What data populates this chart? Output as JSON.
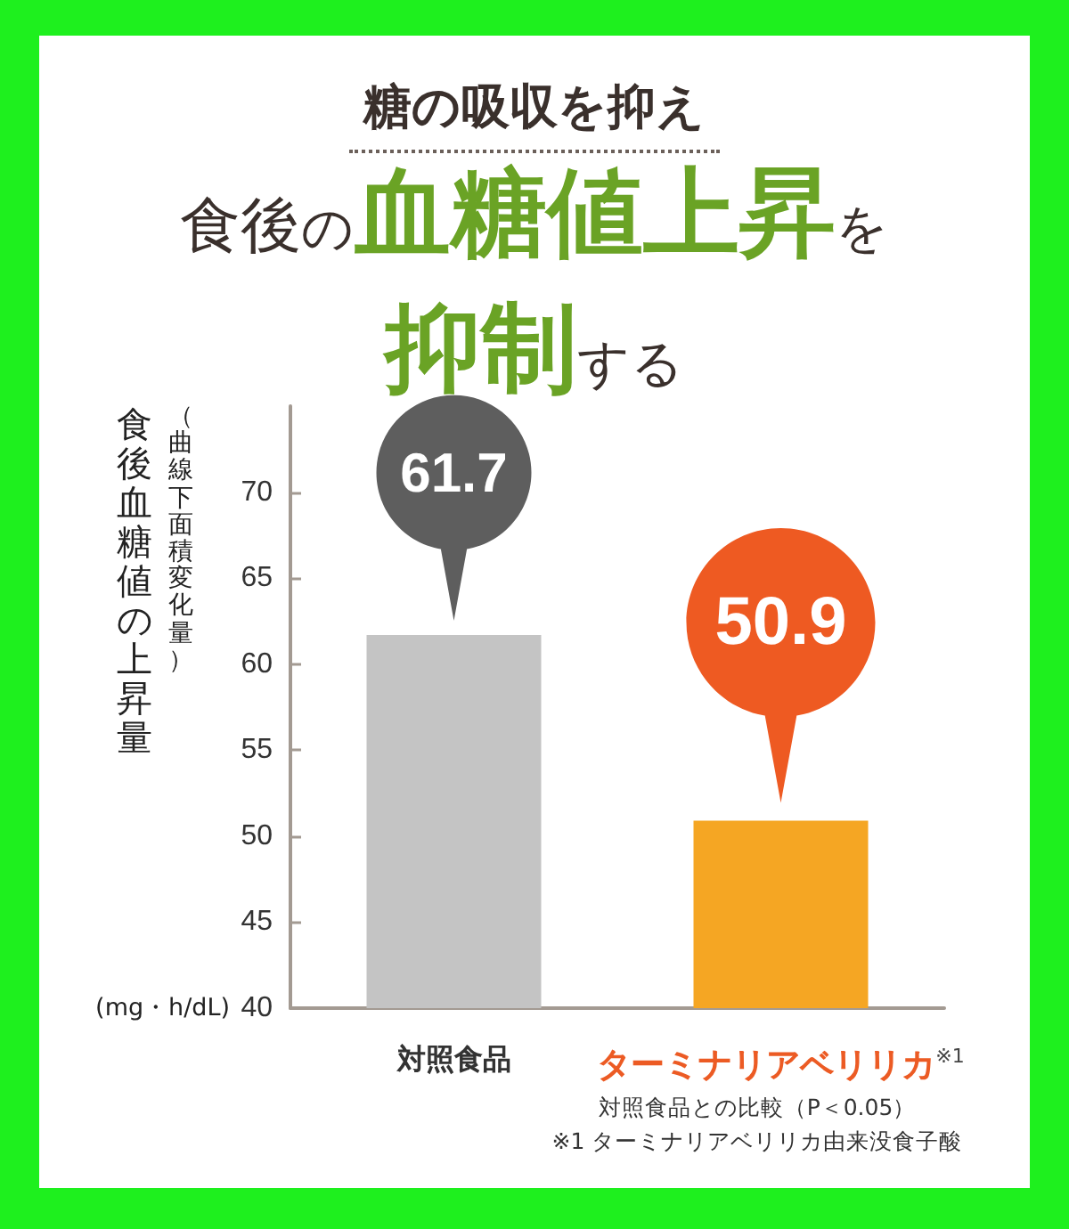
{
  "chart_data": {
    "type": "bar",
    "title": "糖の吸収を抑え",
    "subtitle": "食後の血糖値上昇を抑制する",
    "ylabel": "食後血糖値の上昇量（曲線下面積変化量）(mg・h/dL)",
    "categories": [
      "対照食品",
      "ターミナリアベリリカ$^{※1}$"
    ],
    "values": [
      61.7,
      50.9
    ],
    "colors": [
      "#c4c4c4",
      "#f5a623"
    ],
    "ylim": [
      40,
      75
    ],
    "yticks": [
      40,
      45,
      50,
      55,
      60,
      65,
      70
    ],
    "data_labels": true,
    "annotations": [
      "対照食品との比較（P＜0.05）",
      "※1 ターミナリアベリリカ由来没食子酸"
    ]
  }
}
